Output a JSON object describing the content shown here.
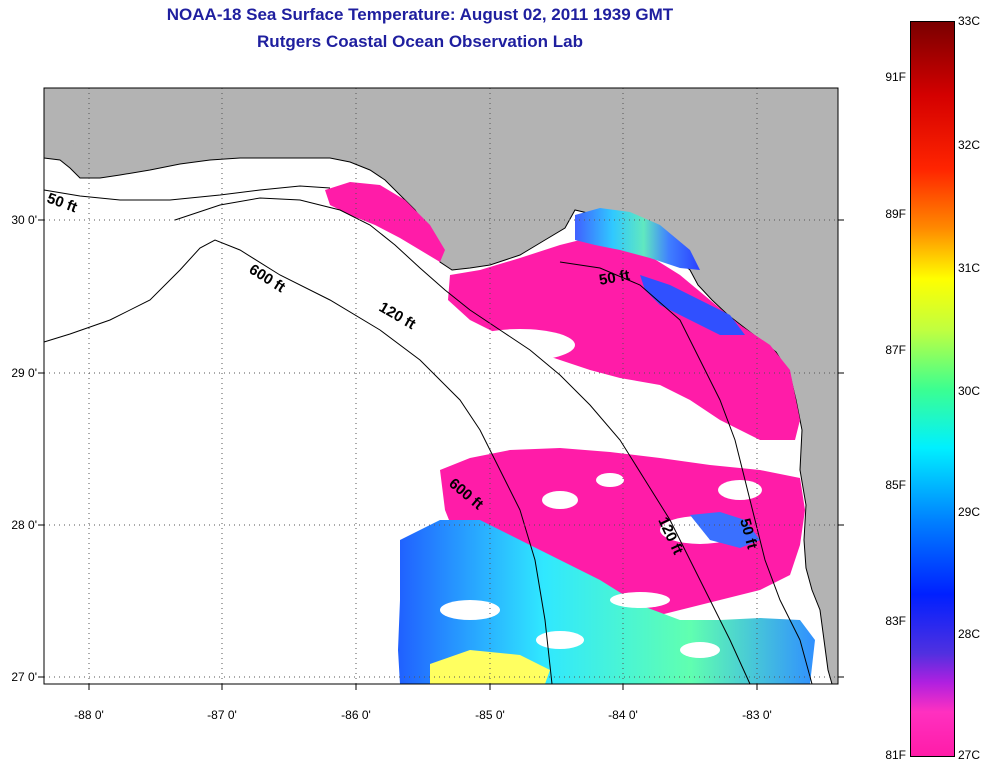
{
  "header": {
    "title": "NOAA-18 Sea Surface Temperature:  August 02, 2011 1939 GMT",
    "subtitle": "Rutgers Coastal Ocean Observation Lab"
  },
  "map": {
    "lat_labels": [
      "30 0'",
      "29 0'",
      "28 0'",
      "27 0'"
    ],
    "lon_labels": [
      "-88 0'",
      "-87 0'",
      "-86 0'",
      "-85 0'",
      "-84 0'",
      "-83 0'"
    ],
    "isobath_labels": [
      "50 ft",
      "600 ft",
      "120 ft",
      "50 ft",
      "600 ft",
      "120 ft",
      "50 ft"
    ],
    "colors": {
      "land": "#b3b3b3",
      "cloud": "#ffffff",
      "warm": "#ff1ca8",
      "cool": "#1e6cff"
    }
  },
  "colorbar": {
    "celsius": [
      "33C",
      "32C",
      "31C",
      "30C",
      "29C",
      "28C",
      "27C"
    ],
    "fahrenheit": [
      "91F",
      "89F",
      "87F",
      "85F",
      "83F",
      "81F"
    ]
  }
}
